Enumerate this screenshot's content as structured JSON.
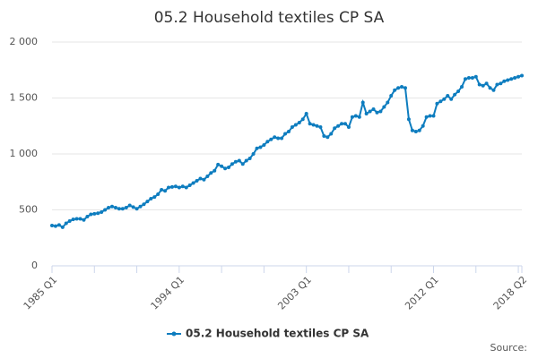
{
  "chart_data": {
    "type": "line",
    "title": "05.2 Household textiles CP SA",
    "source": "Source:",
    "categories": [
      "1985 Q1",
      null,
      null,
      null,
      null,
      null,
      null,
      null,
      null,
      null,
      null,
      null,
      null,
      null,
      null,
      null,
      null,
      null,
      null,
      null,
      null,
      null,
      null,
      null,
      null,
      null,
      null,
      null,
      null,
      null,
      null,
      null,
      null,
      null,
      null,
      null,
      "1994 Q1",
      null,
      null,
      null,
      null,
      null,
      null,
      null,
      null,
      null,
      null,
      null,
      null,
      null,
      null,
      null,
      null,
      null,
      null,
      null,
      null,
      null,
      null,
      null,
      null,
      null,
      null,
      null,
      null,
      null,
      null,
      null,
      null,
      null,
      null,
      null,
      "2003 Q1",
      null,
      null,
      null,
      null,
      null,
      null,
      null,
      null,
      null,
      null,
      null,
      null,
      null,
      null,
      null,
      null,
      null,
      null,
      null,
      null,
      null,
      null,
      null,
      null,
      null,
      null,
      null,
      null,
      null,
      null,
      null,
      null,
      null,
      null,
      null,
      "2012 Q1",
      null,
      null,
      null,
      null,
      null,
      null,
      null,
      null,
      null,
      null,
      null,
      null,
      null,
      null,
      null,
      null,
      null,
      null,
      null,
      null,
      null,
      null,
      null,
      null,
      "2018 Q2"
    ],
    "series": [
      {
        "name": "05.2 Household textiles CP SA",
        "color": "#0e7dbf",
        "values": [
          360,
          355,
          365,
          345,
          380,
          400,
          415,
          420,
          420,
          410,
          440,
          460,
          465,
          470,
          480,
          500,
          520,
          530,
          520,
          510,
          510,
          520,
          540,
          525,
          510,
          530,
          550,
          575,
          600,
          615,
          640,
          680,
          670,
          700,
          705,
          710,
          700,
          710,
          700,
          720,
          740,
          760,
          780,
          770,
          800,
          830,
          850,
          905,
          890,
          870,
          880,
          910,
          930,
          940,
          910,
          940,
          960,
          1000,
          1050,
          1060,
          1080,
          1110,
          1130,
          1150,
          1140,
          1140,
          1180,
          1200,
          1240,
          1260,
          1280,
          1310,
          1360,
          1270,
          1260,
          1250,
          1240,
          1160,
          1150,
          1180,
          1230,
          1250,
          1270,
          1270,
          1240,
          1330,
          1340,
          1330,
          1460,
          1360,
          1380,
          1400,
          1370,
          1380,
          1420,
          1460,
          1520,
          1570,
          1590,
          1600,
          1590,
          1310,
          1210,
          1200,
          1210,
          1250,
          1330,
          1340,
          1340,
          1450,
          1470,
          1490,
          1520,
          1490,
          1530,
          1560,
          1600,
          1670,
          1680,
          1680,
          1690,
          1620,
          1610,
          1630,
          1590,
          1570,
          1620,
          1630,
          1650,
          1660,
          1670,
          1680,
          1690,
          1700
        ]
      }
    ],
    "ylim": [
      0,
      2000
    ],
    "yticks": [
      0,
      500,
      {
        "value": 1000,
        "label": "1 000"
      },
      {
        "value": 1500,
        "label": "1 500"
      },
      {
        "value": 2000,
        "label": "2 000"
      }
    ],
    "grid": true
  }
}
